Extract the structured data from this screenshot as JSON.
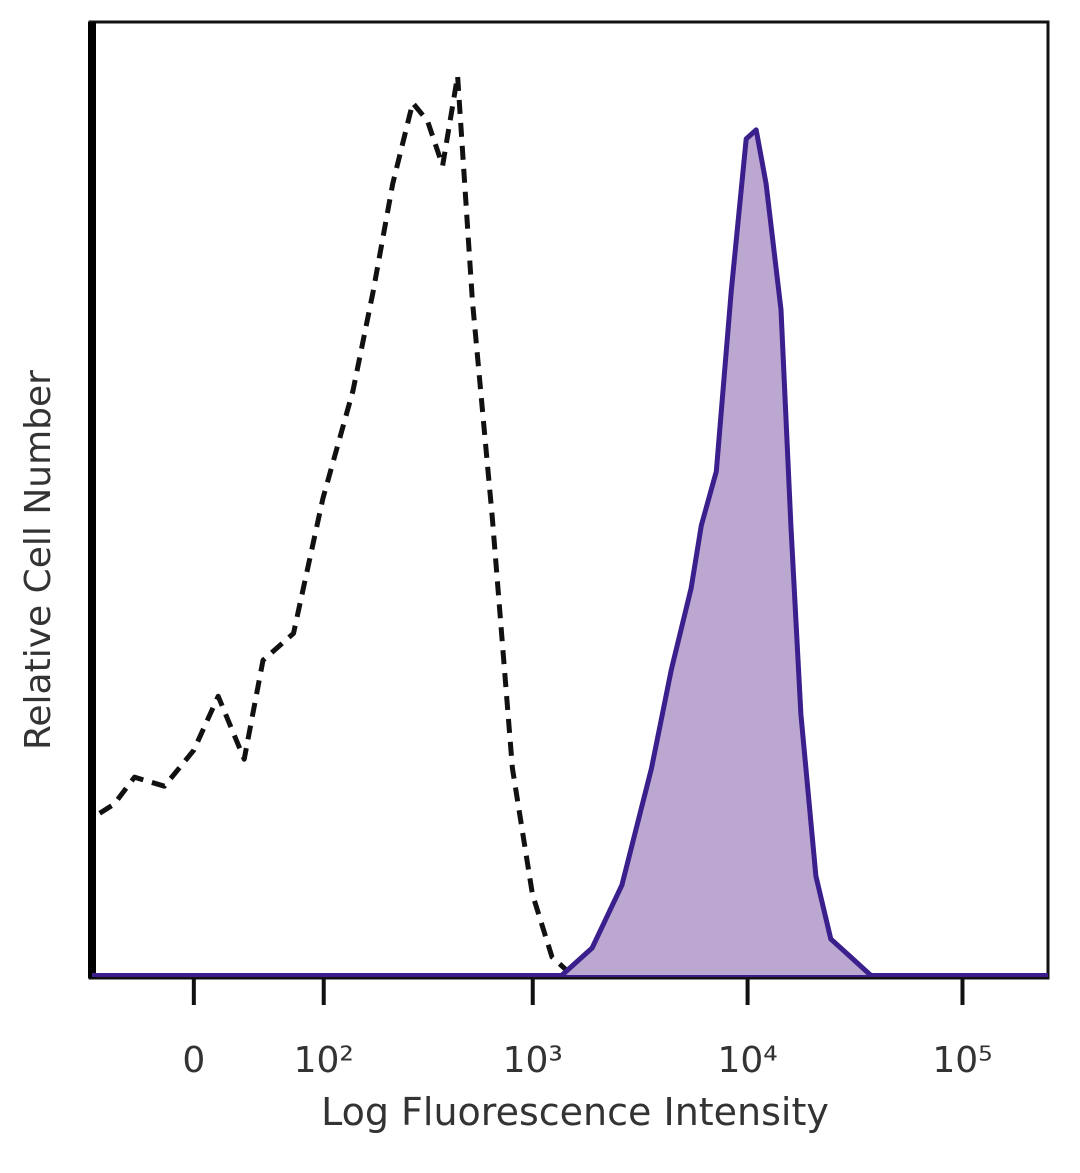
{
  "chart_data": {
    "type": "histogram-overlay",
    "x_label": "Log Fluorescence Intensity",
    "y_label": "Relative Cell Number",
    "xscale": "asinh",
    "xlim": [
      -70,
      250000
    ],
    "ylim": [
      0,
      106
    ],
    "xticks": [
      0,
      {
        "value": 100,
        "label": "10²"
      },
      {
        "value": 1000,
        "label": "10³"
      },
      {
        "value": 10000,
        "label": "10⁴"
      },
      {
        "value": 100000,
        "label": "10⁵"
      }
    ],
    "series": [
      {
        "color": "#111111",
        "style": "dashed",
        "fill": false,
        "x": [
          -63,
          -51,
          -36,
          -17,
          0,
          14,
          30,
          43,
          68,
          99,
          141,
          177,
          220,
          274,
          322,
          379,
          446,
          523,
          647,
          804,
          996,
          1230,
          1520
        ],
        "values": [
          18,
          19,
          22,
          21,
          25,
          31,
          24,
          35,
          38,
          53,
          65,
          76,
          88,
          97,
          95,
          90,
          100,
          75,
          51,
          23,
          9,
          2,
          0
        ]
      },
      {
        "color": "#3b1f8c",
        "style": "solid",
        "fill": "#bca7d0",
        "x": [
          1370,
          1890,
          2600,
          3570,
          4420,
          5460,
          6090,
          7150,
          8390,
          9850,
          10970,
          12200,
          14300,
          15900,
          17700,
          20800,
          24400,
          30200,
          37300
        ],
        "values": [
          0,
          3,
          10,
          23,
          34,
          43,
          50,
          56,
          76,
          93,
          94,
          88,
          74,
          50,
          29,
          11,
          4,
          2,
          0
        ]
      }
    ]
  }
}
